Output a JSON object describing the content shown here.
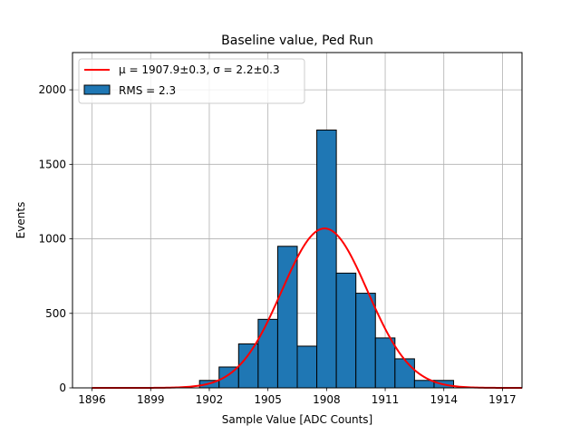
{
  "chart_data": {
    "type": "histogram",
    "title": "Baseline value, Ped Run",
    "xlabel": "Sample Value [ADC Counts]",
    "ylabel": "Events",
    "xlim": [
      1895,
      1918
    ],
    "ylim": [
      0,
      2250
    ],
    "xticks": [
      1896,
      1899,
      1902,
      1905,
      1908,
      1911,
      1914,
      1917
    ],
    "yticks": [
      0,
      500,
      1000,
      1500,
      2000
    ],
    "grid": true,
    "legend_position": "top-left",
    "colors": {
      "bar": "#1f77b4",
      "bar_edge": "#000000",
      "fit": "#ff0000"
    },
    "bins": [
      {
        "x0": 1901.5,
        "x1": 1902.5,
        "count": 50
      },
      {
        "x0": 1902.5,
        "x1": 1903.5,
        "count": 140
      },
      {
        "x0": 1903.5,
        "x1": 1904.5,
        "count": 295
      },
      {
        "x0": 1904.5,
        "x1": 1905.5,
        "count": 460
      },
      {
        "x0": 1905.5,
        "x1": 1906.5,
        "count": 950
      },
      {
        "x0": 1906.5,
        "x1": 1907.5,
        "count": 280
      },
      {
        "x0": 1907.5,
        "x1": 1908.5,
        "count": 1730
      },
      {
        "x0": 1908.5,
        "x1": 1909.5,
        "count": 770
      },
      {
        "x0": 1909.5,
        "x1": 1910.5,
        "count": 635
      },
      {
        "x0": 1910.5,
        "x1": 1911.5,
        "count": 335
      },
      {
        "x0": 1911.5,
        "x1": 1912.5,
        "count": 195
      },
      {
        "x0": 1912.5,
        "x1": 1913.5,
        "count": 50
      },
      {
        "x0": 1913.5,
        "x1": 1914.5,
        "count": 50
      }
    ],
    "fit": {
      "mu": 1907.9,
      "sigma": 2.2,
      "amplitude": 1070,
      "x_range": [
        1896,
        1918
      ]
    },
    "legend": [
      {
        "type": "line",
        "label": "μ = 1907.9±0.3, σ = 2.2±0.3"
      },
      {
        "type": "patch",
        "label": "RMS = 2.3"
      }
    ]
  }
}
